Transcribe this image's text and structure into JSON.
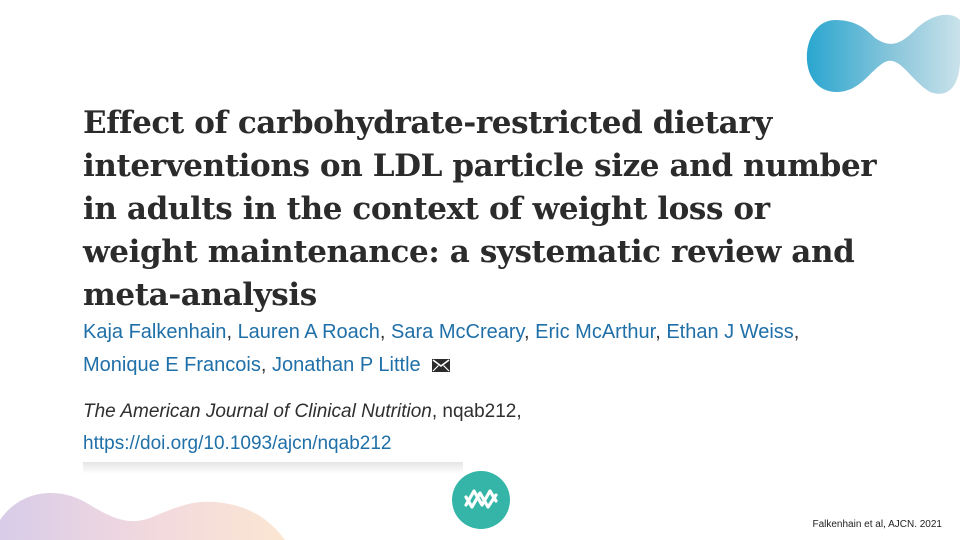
{
  "paper": {
    "title": "Effect of carbohydrate-restricted dietary interventions on LDL particle size and number in adults in the context of weight loss or weight maintenance: a systematic review and meta-analysis",
    "authors": [
      "Kaja Falkenhain",
      "Lauren A Roach",
      "Sara McCreary",
      "Eric McArthur",
      "Ethan J Weiss",
      "Monique E Francois",
      "Jonathan P Little"
    ],
    "journal": "The American Journal of Clinical Nutrition",
    "article_id": ", nqab212,",
    "doi": "https://doi.org/10.1093/ajcn/nqab212"
  },
  "citation": "Falkenhain et al, AJCN. 2021",
  "icons": {
    "mail": "envelope-icon",
    "logo": "brand-logo-icon"
  },
  "colors": {
    "title": "#2b2b2b",
    "link": "#1f6fa8",
    "accent_teal": "#35b5a8",
    "accent_blue": "#2ca6cf"
  }
}
